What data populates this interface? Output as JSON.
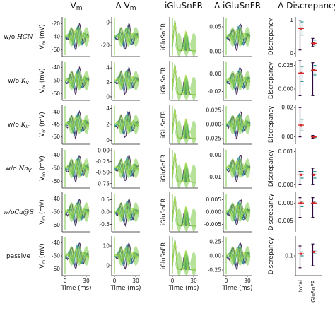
{
  "figure": {
    "columns": [
      "V$_m$",
      "Δ V$_m$",
      "iGluSnFR",
      "Δ iGluSnFR",
      "Δ Discrepancy"
    ],
    "column_titles": {
      "vm": "V",
      "vm_sub": "m",
      "dvm": "Δ V",
      "dvm_sub": "m",
      "glu": "iGluSnFR",
      "dglu": "Δ iGluSnFR",
      "disc": "Δ Discrepancy"
    },
    "rows": [
      {
        "label": "w/o ",
        "label_it": "HCN"
      },
      {
        "label": "w/o ",
        "label_it": "K",
        "label_sub": "v"
      },
      {
        "label": "w/o ",
        "label_it": "K",
        "label_sub": "ir"
      },
      {
        "label": "w/o ",
        "label_it": "Na",
        "label_sub": "V"
      },
      {
        "label": "",
        "label_it": "w/oCa@S"
      },
      {
        "label": "passive",
        "label_it": ""
      }
    ],
    "axis_labels": {
      "vm": "V",
      "vm_sub": "m",
      "vm_unit": " (mV)",
      "glu": "iGluSnFR",
      "disc": "Discrepancy",
      "time": "Time (ms)"
    },
    "x_ticks": [
      "0",
      "30"
    ],
    "disc_categories": [
      "total",
      "iGluSnFR"
    ]
  },
  "chart_data": {
    "type": "line",
    "x": {
      "label": "Time (ms)",
      "lim": [
        0,
        30
      ]
    },
    "panels": {
      "vm": {
        "ylabel": "V_m (mV)",
        "ticks": [
          [
            "-20",
            "-40",
            "-60"
          ],
          [
            "-40",
            "-50",
            "-60"
          ],
          [
            "-40",
            "-45",
            "-50"
          ],
          [
            "-40",
            "-50",
            "-60"
          ],
          [
            "-40",
            "-50",
            "-60"
          ],
          [
            "-40",
            "-50",
            "-60"
          ]
        ],
        "ylims": [
          [
            -70,
            -10
          ],
          [
            -65,
            -35
          ],
          [
            -53,
            -37
          ],
          [
            -65,
            -35
          ],
          [
            -65,
            -35
          ],
          [
            -65,
            -35
          ]
        ]
      },
      "dvm": {
        "ticks": [
          [
            "0",
            "-20"
          ],
          [
            "4",
            "2",
            "0"
          ],
          [
            "4",
            "2",
            "0"
          ],
          [
            "0.00",
            "-0.25",
            "-0.50",
            "-0.75"
          ],
          [
            "0.5",
            "0.0",
            "-0.5"
          ],
          [
            "10",
            "0"
          ]
        ],
        "ylims": [
          [
            -30,
            5
          ],
          [
            -0.5,
            5
          ],
          [
            -0.5,
            4.5
          ],
          [
            -0.85,
            0.05
          ],
          [
            -0.8,
            0.8
          ],
          [
            -5,
            15
          ]
        ]
      },
      "glu": {
        "ylabel": "iGluSnFR",
        "ticks": [
          [],
          [],
          [],
          [],
          [],
          []
        ]
      },
      "dglu": {
        "ticks": [
          [
            "0.05",
            "0.00"
          ],
          [
            "0.00",
            "-0.02"
          ],
          [
            "0.025",
            "0.000",
            "-0.025"
          ],
          [
            "0.00",
            "-0.01"
          ],
          [
            "0.005",
            "0.000",
            "-0.005"
          ],
          [
            "0.25",
            "0.00",
            "-0.25"
          ]
        ],
        "ylims": [
          [
            -0.01,
            0.07
          ],
          [
            -0.03,
            0.015
          ],
          [
            -0.035,
            0.035
          ],
          [
            -0.015,
            0.003
          ],
          [
            -0.008,
            0.008
          ],
          [
            -0.35,
            0.35
          ]
        ]
      },
      "disc": {
        "ylabel": "Discrepancy",
        "categories": [
          "total",
          "iGluSnFR"
        ],
        "ticks": [
          [
            "1",
            "0"
          ],
          [
            "0.025",
            "0.000"
          ],
          [
            "0.02",
            "0.00"
          ],
          [
            "0.001",
            "0.000"
          ],
          [
            "0.000",
            "-0.005"
          ],
          [
            "0.1"
          ]
        ],
        "ylims": [
          [
            -0.1,
            1.1
          ],
          [
            -0.012,
            0.03
          ],
          [
            -0.005,
            0.022
          ],
          [
            -0.0001,
            0.0011
          ],
          [
            -0.008,
            0.003
          ],
          [
            0.05,
            0.15
          ]
        ],
        "series": [
          {
            "name": "total",
            "values": [
              [
                0.75,
                0.55,
                0.95,
                0.1,
                1.0
              ],
              [
                0.017,
                0.024,
                0.008,
                -0.007,
                0.03
              ],
              [
                0.008,
                0.012,
                0.004,
                0.0,
                0.02
              ],
              [
                0.0003,
                0.0002,
                0.0004,
                0.0,
                0.0004
              ],
              [
                0.0,
                -0.001,
                0.0005,
                -0.004,
                0.0015
              ],
              [
                0.105,
                0.1,
                0.11,
                0.07,
                0.125
              ]
            ]
          },
          {
            "name": "iGluSnFR",
            "values": [
              [
                0.3,
                0.25,
                0.4,
                0.2,
                0.45
              ],
              [
                0.02,
                0.025,
                0.015,
                -0.007,
                0.028
              ],
              [
                0.0,
                0.0005,
                -0.0005,
                -0.001,
                0.001
              ],
              [
                0.0003,
                0.0002,
                0.0004,
                0.0,
                0.0005
              ],
              [
                0.0,
                0.0005,
                -0.0002,
                -0.004,
                0.0015
              ],
              [
                0.11,
                0.105,
                0.115,
                0.075,
                0.13
              ]
            ]
          }
        ]
      }
    },
    "colors": {
      "dark": "#2b0a3d",
      "teal": "#1f8f8c",
      "blue": "#2b5d8e",
      "green": "#7ac843",
      "lime": "#b7df5a",
      "red": "#d62728"
    }
  }
}
